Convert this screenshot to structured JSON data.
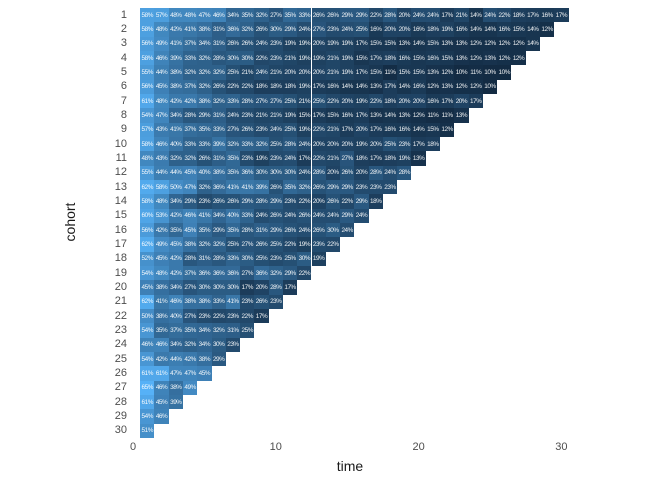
{
  "chart_data": {
    "type": "heatmap",
    "title": "",
    "xlabel": "time",
    "ylabel": "cohort",
    "x_ticks": [
      0,
      10,
      20,
      30
    ],
    "x_range": [
      0,
      31
    ],
    "y_categories": [
      1,
      2,
      3,
      4,
      5,
      6,
      7,
      8,
      9,
      10,
      11,
      12,
      13,
      14,
      15,
      16,
      17,
      18,
      19,
      20,
      21,
      22,
      23,
      24,
      25,
      26,
      27,
      28,
      29,
      30
    ],
    "value_suffix": "%",
    "legend": "none",
    "grid": "off",
    "color_scale": {
      "low_value": 10,
      "low_color": "#132B43",
      "high_value": 65,
      "high_color": "#56B1F7"
    },
    "rows": [
      {
        "cohort": 1,
        "values": [
          58,
          57,
          48,
          48,
          47,
          46,
          34,
          35,
          32,
          27,
          35,
          33,
          26,
          26,
          29,
          29,
          22,
          28,
          20,
          24,
          24,
          17,
          21,
          14,
          24,
          22,
          18,
          17,
          16,
          17
        ]
      },
      {
        "cohort": 2,
        "values": [
          58,
          48,
          42,
          41,
          38,
          31,
          36,
          32,
          26,
          30,
          29,
          24,
          27,
          23,
          24,
          25,
          16,
          20,
          20,
          16,
          18,
          19,
          16,
          14,
          14,
          16,
          15,
          14,
          12
        ]
      },
      {
        "cohort": 3,
        "values": [
          56,
          49,
          41,
          37,
          34,
          31,
          26,
          26,
          24,
          23,
          19,
          19,
          20,
          19,
          19,
          17,
          15,
          15,
          13,
          14,
          15,
          13,
          13,
          12,
          12,
          12,
          12,
          14
        ]
      },
      {
        "cohort": 4,
        "values": [
          58,
          46,
          39,
          33,
          32,
          28,
          30,
          30,
          22,
          23,
          21,
          19,
          19,
          21,
          19,
          15,
          17,
          18,
          16,
          15,
          16,
          15,
          13,
          12,
          13,
          12,
          12
        ]
      },
      {
        "cohort": 5,
        "values": [
          55,
          44,
          38,
          32,
          32,
          32,
          25,
          21,
          24,
          21,
          20,
          20,
          20,
          21,
          19,
          17,
          15,
          11,
          15,
          15,
          13,
          12,
          10,
          11,
          10,
          10
        ]
      },
      {
        "cohort": 6,
        "values": [
          56,
          45,
          38,
          37,
          32,
          26,
          22,
          22,
          18,
          18,
          18,
          19,
          17,
          16,
          14,
          14,
          13,
          17,
          14,
          16,
          12,
          13,
          12,
          12,
          10
        ]
      },
      {
        "cohort": 7,
        "values": [
          61,
          48,
          42,
          42,
          38,
          32,
          33,
          28,
          27,
          27,
          25,
          21,
          25,
          22,
          20,
          19,
          22,
          18,
          20,
          20,
          16,
          17,
          20,
          17
        ]
      },
      {
        "cohort": 8,
        "values": [
          54,
          47,
          34,
          28,
          29,
          31,
          24,
          23,
          21,
          21,
          19,
          15,
          17,
          15,
          16,
          17,
          13,
          14,
          13,
          12,
          11,
          11,
          13
        ]
      },
      {
        "cohort": 9,
        "values": [
          57,
          43,
          41,
          37,
          35,
          33,
          27,
          26,
          23,
          24,
          25,
          19,
          22,
          21,
          17,
          20,
          17,
          16,
          16,
          14,
          15,
          12
        ]
      },
      {
        "cohort": 10,
        "values": [
          58,
          46,
          40,
          33,
          33,
          39,
          32,
          33,
          32,
          25,
          28,
          24,
          20,
          20,
          20,
          19,
          20,
          25,
          23,
          17,
          18
        ]
      },
      {
        "cohort": 11,
        "values": [
          48,
          43,
          32,
          32,
          26,
          31,
          35,
          23,
          19,
          23,
          24,
          17,
          22,
          21,
          27,
          18,
          17,
          18,
          19,
          13
        ]
      },
      {
        "cohort": 12,
        "values": [
          55,
          44,
          44,
          45,
          40,
          38,
          35,
          36,
          30,
          30,
          30,
          24,
          28,
          20,
          26,
          20,
          28,
          24,
          28
        ]
      },
      {
        "cohort": 13,
        "values": [
          62,
          58,
          50,
          47,
          32,
          36,
          41,
          41,
          39,
          26,
          35,
          32,
          26,
          29,
          29,
          23,
          23,
          23
        ]
      },
      {
        "cohort": 14,
        "values": [
          58,
          48,
          34,
          29,
          23,
          26,
          26,
          29,
          28,
          29,
          23,
          22,
          20,
          26,
          22,
          29,
          18
        ]
      },
      {
        "cohort": 15,
        "values": [
          60,
          53,
          42,
          46,
          41,
          34,
          40,
          33,
          24,
          26,
          24,
          26,
          24,
          24,
          29,
          24
        ]
      },
      {
        "cohort": 16,
        "values": [
          56,
          42,
          35,
          45,
          35,
          29,
          35,
          28,
          31,
          29,
          26,
          24,
          26,
          30,
          24
        ]
      },
      {
        "cohort": 17,
        "values": [
          62,
          49,
          45,
          38,
          32,
          32,
          25,
          27,
          26,
          25,
          22,
          19,
          23,
          22
        ]
      },
      {
        "cohort": 18,
        "values": [
          52,
          45,
          42,
          28,
          31,
          28,
          33,
          30,
          25,
          23,
          25,
          30,
          19
        ]
      },
      {
        "cohort": 19,
        "values": [
          54,
          48,
          42,
          37,
          36,
          36,
          36,
          27,
          36,
          32,
          29,
          22
        ]
      },
      {
        "cohort": 20,
        "values": [
          45,
          38,
          34,
          27,
          30,
          30,
          30,
          17,
          20,
          28,
          17
        ]
      },
      {
        "cohort": 21,
        "values": [
          62,
          41,
          46,
          38,
          38,
          33,
          41,
          23,
          26,
          23
        ]
      },
      {
        "cohort": 22,
        "values": [
          50,
          38,
          40,
          27,
          23,
          22,
          23,
          22,
          17
        ]
      },
      {
        "cohort": 23,
        "values": [
          54,
          35,
          37,
          35,
          34,
          32,
          31,
          25
        ]
      },
      {
        "cohort": 24,
        "values": [
          46,
          46,
          34,
          32,
          34,
          30,
          23
        ]
      },
      {
        "cohort": 25,
        "values": [
          54,
          42,
          44,
          42,
          38,
          29
        ]
      },
      {
        "cohort": 26,
        "values": [
          61,
          61,
          47,
          47,
          45
        ]
      },
      {
        "cohort": 27,
        "values": [
          65,
          46,
          38,
          49
        ]
      },
      {
        "cohort": 28,
        "values": [
          61,
          45,
          39
        ]
      },
      {
        "cohort": 29,
        "values": [
          54,
          46
        ]
      },
      {
        "cohort": 30,
        "values": [
          51
        ]
      }
    ]
  }
}
